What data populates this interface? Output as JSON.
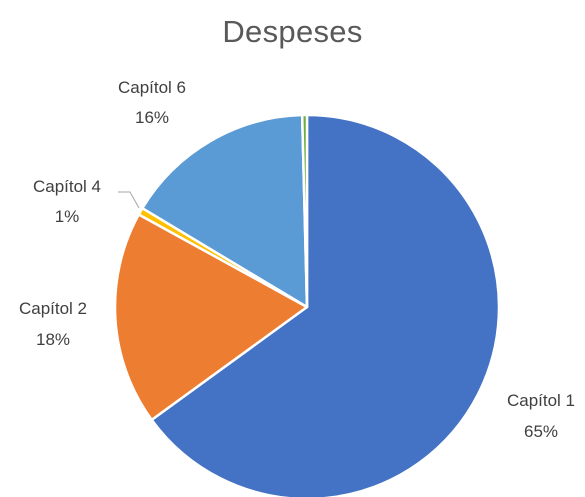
{
  "chart_data": {
    "type": "pie",
    "title": "Despeses",
    "slices": [
      {
        "name": "Capítol 1",
        "label": "Capítol 1",
        "pct_label": "65%",
        "value": 65,
        "color": "#4472C4"
      },
      {
        "name": "Capítol 2",
        "label": "Capítol 2",
        "pct_label": "18%",
        "value": 18,
        "color": "#ED7D31"
      },
      {
        "name": "Capítol 4",
        "label": "Capítol 4",
        "pct_label": "1%",
        "value": 0.6,
        "color": "#FFC000"
      },
      {
        "name": "Capítol 6",
        "label": "Capítol 6",
        "pct_label": "16%",
        "value": 16,
        "color": "#5B9BD5"
      },
      {
        "name": "",
        "label": "",
        "pct_label": "",
        "value": 0.4,
        "color": "#70AD47"
      }
    ],
    "start_angle_deg": 0,
    "direction": "clockwise",
    "legend": "none"
  }
}
